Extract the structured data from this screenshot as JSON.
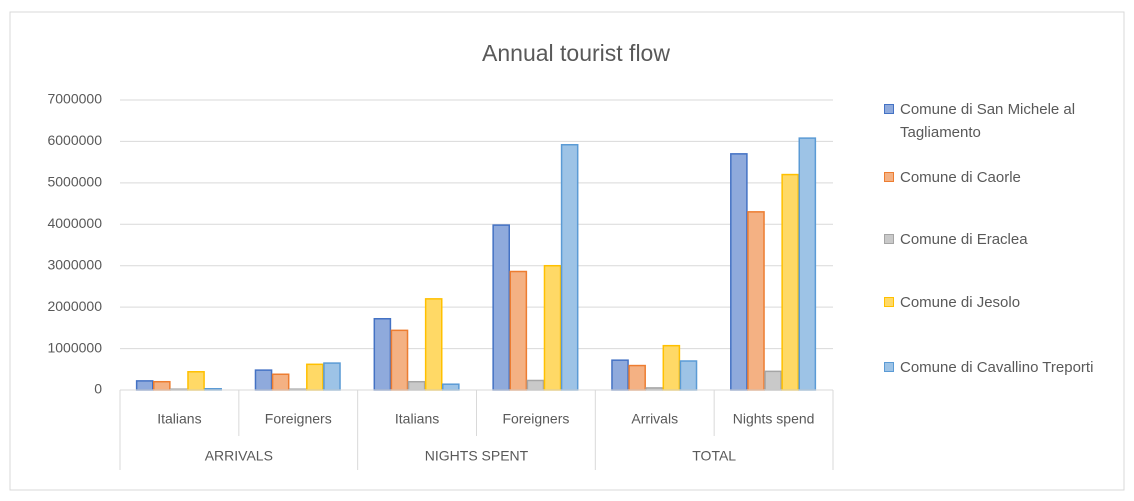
{
  "chart_data": {
    "type": "bar",
    "title": "Annual tourist flow",
    "categories": [
      "Italians",
      "Foreigners",
      "Italians",
      "Foreigners",
      "Arrivals",
      "Nights spend"
    ],
    "category_groups": [
      {
        "name": "ARRIVALS",
        "size": 2
      },
      {
        "name": "NIGHTS SPENT",
        "size": 2
      },
      {
        "name": "TOTAL",
        "size": 2
      }
    ],
    "series": [
      {
        "name": "Comune di San Michele al Tagliamento",
        "color": "#4472c4",
        "fill": "#8faadc",
        "values": [
          220000,
          480000,
          1720000,
          3980000,
          720000,
          5700000
        ]
      },
      {
        "name": "Comune di Caorle",
        "color": "#ed7d31",
        "fill": "#f4b183",
        "values": [
          200000,
          380000,
          1440000,
          2860000,
          590000,
          4300000
        ]
      },
      {
        "name": "Comune di Eraclea",
        "color": "#a5a5a5",
        "fill": "#c9c9c9",
        "values": [
          20000,
          20000,
          200000,
          230000,
          50000,
          450000
        ]
      },
      {
        "name": "Comune di Jesolo",
        "color": "#ffc000",
        "fill": "#ffd966",
        "values": [
          440000,
          620000,
          2200000,
          3000000,
          1070000,
          5200000
        ]
      },
      {
        "name": "Comune di Cavallino Treporti",
        "color": "#5b9bd5",
        "fill": "#9dc3e6",
        "values": [
          30000,
          650000,
          140000,
          5920000,
          700000,
          6080000
        ]
      }
    ],
    "ylim": [
      0,
      7000000
    ],
    "yticks": [
      0,
      1000000,
      2000000,
      3000000,
      4000000,
      5000000,
      6000000,
      7000000
    ],
    "grid": true,
    "legend": "right"
  }
}
